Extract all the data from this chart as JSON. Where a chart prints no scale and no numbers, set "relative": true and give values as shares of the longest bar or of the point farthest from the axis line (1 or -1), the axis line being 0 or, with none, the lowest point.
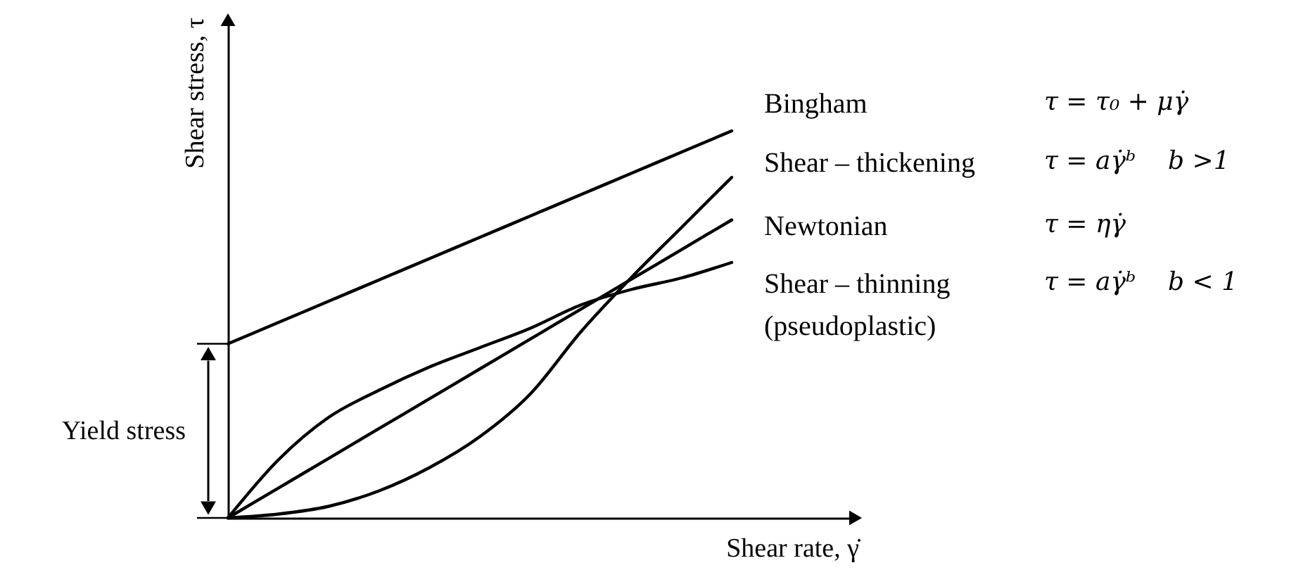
{
  "chart_data": {
    "type": "line",
    "relative": true,
    "xlabel": "Shear rate, γ̇",
    "ylabel": "Shear stress, τ",
    "categories": [
      null,
      null,
      null,
      null,
      null,
      null,
      null,
      null,
      null,
      null,
      null
    ],
    "series": [
      {
        "name": "Bingham",
        "color": "#000000",
        "values": [
          0.45,
          0.505,
          0.56,
          0.615,
          0.67,
          0.725,
          0.78,
          0.835,
          0.89,
          0.945,
          1
        ]
      },
      {
        "name": "Shear – thickening",
        "color": "#000000",
        "values": [
          0,
          0.01,
          0.03,
          0.07,
          0.13,
          0.21,
          0.32,
          0.48,
          0.62,
          0.75,
          0.88
        ]
      },
      {
        "name": "Newtonian",
        "color": "#000000",
        "values": [
          0,
          0.077,
          0.154,
          0.231,
          0.308,
          0.385,
          0.462,
          0.539,
          0.616,
          0.693,
          0.77
        ]
      },
      {
        "name": "Shear – thinning\n(pseudoplastic)",
        "color": "#000000",
        "values": [
          0,
          0.15,
          0.26,
          0.33,
          0.39,
          0.44,
          0.49,
          0.55,
          0.59,
          0.62,
          0.66
        ]
      }
    ],
    "annotations": [
      "τ = τ₀ + μγ̇",
      "τ = aγ̇ᵇ    b >1",
      "τ = ηγ̇",
      "τ = aγ̇ᵇ    b < 1",
      "Yield stress"
    ],
    "legend": "right",
    "line_style": "solid",
    "marker": "none"
  }
}
